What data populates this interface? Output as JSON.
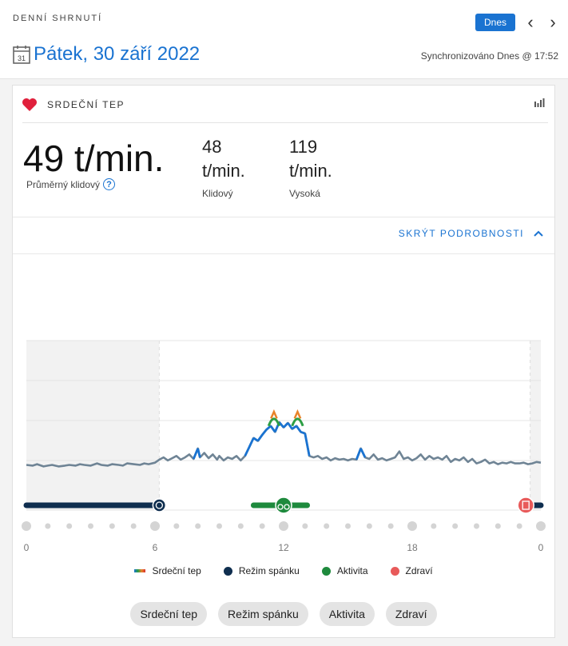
{
  "header": {
    "section_label": "DENNÍ SHRNUTÍ",
    "today_button": "Dnes",
    "date": "Pátek, 30 září 2022",
    "calendar_day": "31",
    "sync_status": "Synchronizováno Dnes @ 17:52"
  },
  "card": {
    "title": "SRDEČNÍ TEP",
    "average_value": "49 t/min.",
    "average_label": "Průměrný klidový",
    "resting": {
      "value": "48",
      "unit": "t/min.",
      "label": "Klidový"
    },
    "high": {
      "value": "119",
      "unit": "t/min.",
      "label": "Vysoká"
    },
    "toggle_details": "SKRÝT PODROBNOSTI"
  },
  "legend": [
    {
      "label": "Srdeční tep",
      "color": "#1a73d1"
    },
    {
      "label": "Režim spánku",
      "color": "#0f2e4f"
    },
    {
      "label": "Aktivita",
      "color": "#1e8a3d"
    },
    {
      "label": "Zdraví",
      "color": "#e85a5a"
    }
  ],
  "filters": [
    "Srdeční tep",
    "Režim spánku",
    "Aktivita",
    "Zdraví"
  ],
  "chart_data": {
    "type": "line",
    "x_ticks": [
      "0",
      "6",
      "12",
      "18",
      "0"
    ],
    "x_range_hours": [
      0,
      24
    ],
    "grid": true,
    "series": [
      {
        "name": "Srdeční tep",
        "color": "#6f8495",
        "highlight_color": "#1a73d1",
        "values_hours": [
          0,
          0.3,
          0.5,
          0.8,
          1,
          1.2,
          1.5,
          1.8,
          2,
          2.3,
          2.5,
          2.7,
          3,
          3.3,
          3.5,
          3.8,
          4,
          4.3,
          4.5,
          4.7,
          5,
          5.3,
          5.5,
          5.7,
          6,
          6.2,
          6.4,
          6.6,
          6.8,
          7,
          7.2,
          7.4,
          7.6,
          7.8,
          8,
          8.1,
          8.3,
          8.5,
          8.7,
          8.9,
          9,
          9.2,
          9.4,
          9.6,
          9.8,
          10,
          10.2,
          10.4,
          10.6,
          10.8,
          11,
          11.2,
          11.4,
          11.6,
          11.8,
          12,
          12.2,
          12.4,
          12.6,
          12.8,
          13,
          13.2,
          13.4,
          13.6,
          13.8,
          14,
          14.2,
          14.4,
          14.6,
          14.8,
          15,
          15.2,
          15.4,
          15.6,
          15.8,
          16,
          16.2,
          16.4,
          16.6,
          16.8,
          17,
          17.2,
          17.4,
          17.6,
          17.8,
          18,
          18.2,
          18.4,
          18.6,
          18.8,
          19,
          19.2,
          19.4,
          19.6,
          19.8,
          20,
          20.2,
          20.4,
          20.6,
          20.8,
          21,
          21.2,
          21.4,
          21.6,
          21.8,
          22,
          22.2,
          22.4,
          22.6,
          22.8,
          23,
          23.2,
          23.4,
          23.6,
          23.8,
          24
        ],
        "bpm": [
          48,
          47,
          49,
          46,
          47,
          48,
          46,
          47,
          48,
          47,
          49,
          48,
          47,
          50,
          48,
          47,
          49,
          48,
          47,
          50,
          49,
          48,
          50,
          49,
          51,
          55,
          58,
          54,
          57,
          60,
          55,
          58,
          62,
          56,
          70,
          58,
          64,
          57,
          62,
          55,
          60,
          54,
          58,
          56,
          60,
          54,
          60,
          72,
          84,
          80,
          88,
          95,
          100,
          92,
          105,
          98,
          104,
          96,
          100,
          92,
          90,
          60,
          58,
          60,
          56,
          58,
          54,
          57,
          55,
          56,
          54,
          56,
          55,
          70,
          58,
          56,
          62,
          55,
          57,
          54,
          56,
          58,
          66,
          56,
          58,
          54,
          57,
          62,
          55,
          60,
          56,
          58,
          55,
          60,
          52,
          56,
          54,
          58,
          52,
          56,
          50,
          52,
          55,
          50,
          52,
          49,
          51,
          50,
          52,
          50,
          50,
          51,
          49,
          50,
          52,
          51
        ],
        "activity_peak_bpm": 119
      }
    ],
    "sleep_periods_hours": [
      [
        0,
        6.2
      ],
      [
        23.5,
        24
      ]
    ],
    "activity_periods_hours": [
      [
        10.6,
        13.1
      ]
    ],
    "health_marker_hour": 23.3
  }
}
